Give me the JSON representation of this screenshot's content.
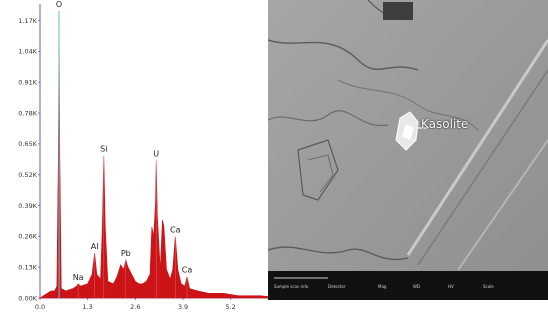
{
  "chart_data": {
    "type": "area",
    "title": "",
    "xlabel": "",
    "ylabel": "",
    "xlim": [
      0.0,
      6.6
    ],
    "ylim": [
      0.0,
      1.24
    ],
    "x_ticks": [
      "0.0",
      "1.3",
      "2.6",
      "3.9",
      "5.2"
    ],
    "y_ticks": [
      "0.00K",
      "0.13K",
      "0.26K",
      "0.39K",
      "0.52K",
      "0.65K",
      "0.78K",
      "0.91K",
      "1.04K",
      "1.17K"
    ],
    "fill_color": "#cc1418",
    "peaks": [
      {
        "element": "O",
        "x": 0.52,
        "y": 1.21
      },
      {
        "element": "Na",
        "x": 1.04,
        "y": 0.06
      },
      {
        "element": "Al",
        "x": 1.49,
        "y": 0.19
      },
      {
        "element": "Si",
        "x": 1.74,
        "y": 0.6
      },
      {
        "element": "Pb",
        "x": 2.34,
        "y": 0.16
      },
      {
        "element": "U",
        "x": 3.17,
        "y": 0.58
      },
      {
        "element": "Ca",
        "x": 3.69,
        "y": 0.26
      },
      {
        "element": "Ca",
        "x": 4.01,
        "y": 0.09
      }
    ],
    "spectrum": {
      "x": [
        0.0,
        0.1,
        0.2,
        0.3,
        0.4,
        0.46,
        0.5,
        0.52,
        0.54,
        0.58,
        0.7,
        0.9,
        1.0,
        1.04,
        1.1,
        1.3,
        1.42,
        1.49,
        1.55,
        1.65,
        1.7,
        1.74,
        1.78,
        1.85,
        2.0,
        2.1,
        2.2,
        2.28,
        2.34,
        2.4,
        2.5,
        2.6,
        2.7,
        2.8,
        2.9,
        3.0,
        3.05,
        3.1,
        3.15,
        3.17,
        3.2,
        3.28,
        3.34,
        3.38,
        3.45,
        3.55,
        3.62,
        3.69,
        3.76,
        3.85,
        3.95,
        4.01,
        4.08,
        4.3,
        4.6,
        5.0,
        5.4,
        6.0,
        6.6
      ],
      "y": [
        0.0,
        0.01,
        0.02,
        0.03,
        0.03,
        0.05,
        0.6,
        1.21,
        0.6,
        0.04,
        0.03,
        0.04,
        0.05,
        0.06,
        0.05,
        0.06,
        0.1,
        0.19,
        0.1,
        0.08,
        0.3,
        0.6,
        0.3,
        0.07,
        0.06,
        0.09,
        0.14,
        0.12,
        0.16,
        0.13,
        0.1,
        0.07,
        0.06,
        0.06,
        0.07,
        0.1,
        0.3,
        0.26,
        0.4,
        0.58,
        0.35,
        0.12,
        0.33,
        0.3,
        0.12,
        0.08,
        0.12,
        0.26,
        0.12,
        0.06,
        0.05,
        0.09,
        0.04,
        0.03,
        0.02,
        0.02,
        0.01,
        0.01,
        0.0
      ]
    }
  },
  "sem_image": {
    "annotation": "Kasolite",
    "scale_bar_text": [
      "Sample scan info",
      "Detector",
      "Mag",
      "WD",
      "HV",
      "Scale"
    ]
  }
}
